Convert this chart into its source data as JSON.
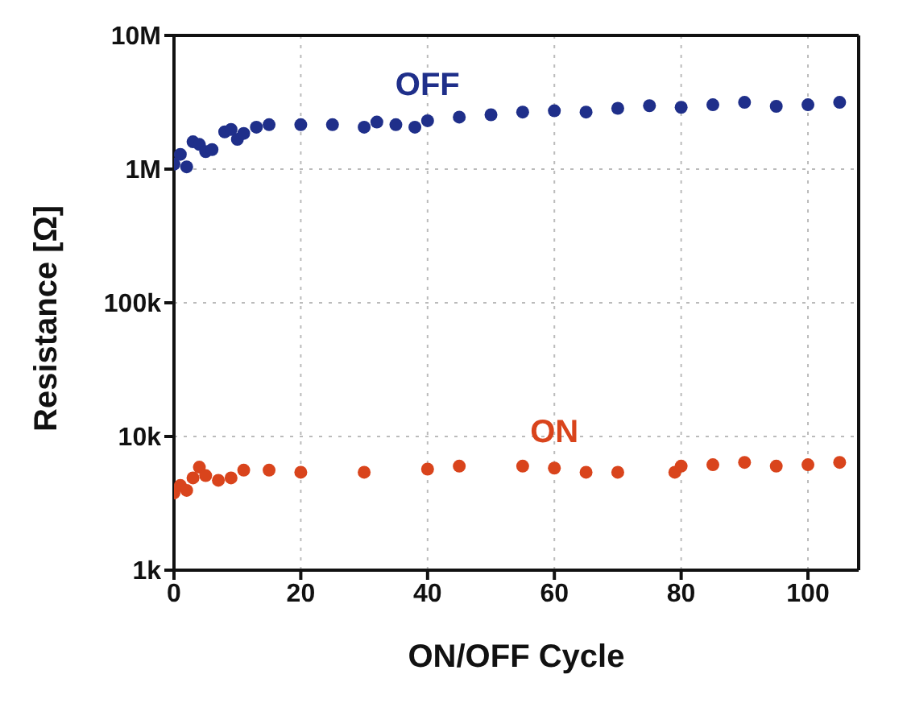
{
  "chart_data": {
    "type": "scatter",
    "xlabel": "ON/OFF Cycle",
    "ylabel": "Resistance [Ω]",
    "log": "y",
    "grid": true,
    "legend": false,
    "marker": "circle",
    "xlim": [
      0,
      108
    ],
    "xticks": [
      0,
      20,
      40,
      60,
      80,
      100
    ],
    "ylim": [
      1000,
      10000000
    ],
    "yticks": [
      {
        "value": 1000,
        "label": "1k"
      },
      {
        "value": 10000,
        "label": "10k"
      },
      {
        "value": 100000,
        "label": "100k"
      },
      {
        "value": 1000000,
        "label": "1M"
      },
      {
        "value": 10000000,
        "label": "10M"
      }
    ],
    "series": [
      {
        "name": "OFF",
        "color": "#1f2f8a",
        "x": [
          0,
          1,
          2,
          3,
          4,
          5,
          6,
          8,
          9,
          10,
          11,
          13,
          15,
          20,
          25,
          30,
          32,
          35,
          38,
          40,
          45,
          50,
          55,
          60,
          65,
          70,
          75,
          80,
          85,
          90,
          95,
          100,
          105
        ],
        "values": [
          1090000,
          1290000,
          1040000,
          1600000,
          1530000,
          1350000,
          1400000,
          1900000,
          1980000,
          1670000,
          1850000,
          2060000,
          2150000,
          2150000,
          2150000,
          2060000,
          2250000,
          2150000,
          2060000,
          2300000,
          2450000,
          2550000,
          2670000,
          2730000,
          2670000,
          2850000,
          2980000,
          2900000,
          3030000,
          3160000,
          2950000,
          3030000,
          3160000
        ]
      },
      {
        "name": "ON",
        "color": "#d9441c",
        "x": [
          0,
          1,
          2,
          3,
          4,
          5,
          7,
          9,
          11,
          15,
          20,
          30,
          40,
          45,
          55,
          60,
          65,
          70,
          79,
          80,
          85,
          90,
          95,
          100,
          105
        ],
        "values": [
          3780,
          4300,
          3950,
          4900,
          5900,
          5100,
          4700,
          4900,
          5600,
          5600,
          5400,
          5400,
          5700,
          6000,
          6000,
          5800,
          5400,
          5400,
          5400,
          6000,
          6150,
          6400,
          6000,
          6150,
          6400
        ]
      }
    ]
  }
}
